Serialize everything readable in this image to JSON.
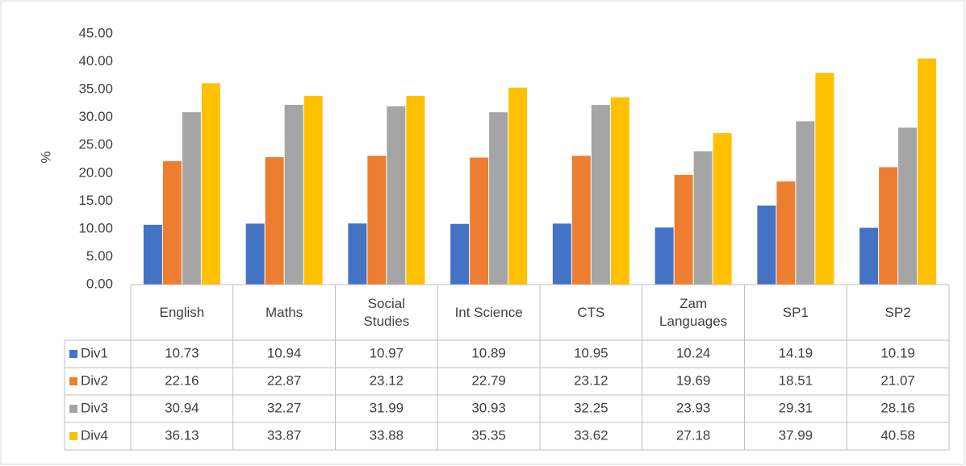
{
  "chart_data": {
    "type": "bar",
    "ylabel": "%",
    "categories": [
      "English",
      "Maths",
      "Social Studies",
      "Int Science",
      "CTS",
      "Zam Languages",
      "SP1",
      "SP2"
    ],
    "series": [
      {
        "name": "Div1",
        "color": "#4472c4",
        "values": [
          10.73,
          10.94,
          10.97,
          10.89,
          10.95,
          10.24,
          14.19,
          10.19
        ]
      },
      {
        "name": "Div2",
        "color": "#ed7d31",
        "values": [
          22.16,
          22.87,
          23.12,
          22.79,
          23.12,
          19.69,
          18.51,
          21.07
        ]
      },
      {
        "name": "Div3",
        "color": "#a5a5a5",
        "values": [
          30.94,
          32.27,
          31.99,
          30.93,
          32.25,
          23.93,
          29.31,
          28.16
        ]
      },
      {
        "name": "Div4",
        "color": "#ffc000",
        "values": [
          36.13,
          33.87,
          33.88,
          35.35,
          33.62,
          27.18,
          37.99,
          40.58
        ]
      }
    ],
    "ylim": [
      0,
      45
    ],
    "yticks": [
      {
        "value": 0,
        "label": "0.00"
      },
      {
        "value": 5,
        "label": "5.00"
      },
      {
        "value": 10,
        "label": "10.00"
      },
      {
        "value": 15,
        "label": "15.00"
      },
      {
        "value": 20,
        "label": "20.00"
      },
      {
        "value": 25,
        "label": "25.00"
      },
      {
        "value": 30,
        "label": "30.00"
      },
      {
        "value": 35,
        "label": "35.00"
      },
      {
        "value": 40,
        "label": "40.00"
      },
      {
        "value": 45,
        "label": "45.00"
      }
    ],
    "grid": false,
    "data_table": true
  }
}
